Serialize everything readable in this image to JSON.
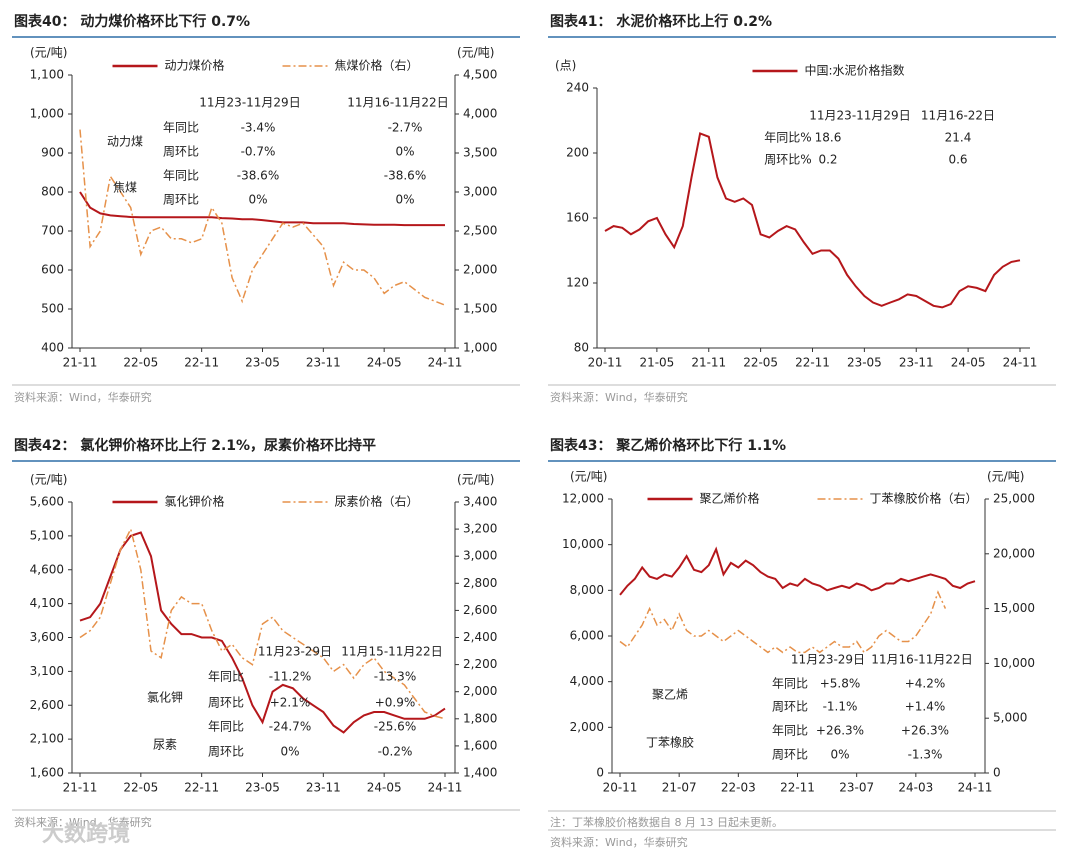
{
  "chart_data": [
    {
      "type": "line",
      "title": "图表40： 动力煤价格环比下行 0.7%",
      "y_unit": "(元/吨)",
      "y2_unit": "(元/吨)",
      "source": "资料来源：Wind，华泰研究",
      "x": [
        "21-11",
        null,
        null,
        null,
        null,
        null,
        "22-05",
        null,
        null,
        null,
        null,
        null,
        "22-11",
        null,
        null,
        null,
        null,
        null,
        "23-05",
        null,
        null,
        null,
        null,
        null,
        "23-11",
        null,
        null,
        null,
        null,
        null,
        "24-05",
        null,
        null,
        null,
        null,
        null,
        "24-11"
      ],
      "series": [
        {
          "name": "动力煤价格",
          "color": "#b5171b",
          "values": [
            800,
            760,
            745,
            740,
            738,
            736,
            735,
            735,
            735,
            735,
            735,
            735,
            735,
            735,
            733,
            732,
            730,
            730,
            728,
            725,
            722,
            722,
            722,
            720,
            720,
            720,
            720,
            718,
            717,
            716,
            716,
            716,
            715,
            715,
            715,
            715,
            715
          ]
        },
        {
          "name": "焦煤价格（右）",
          "color": "#e6914a",
          "dash": "dashdot",
          "axis": "y2",
          "values": [
            3800,
            2300,
            2500,
            3200,
            3000,
            2800,
            2200,
            2500,
            2550,
            2400,
            2400,
            2350,
            2400,
            2800,
            2600,
            1900,
            1600,
            2000,
            2200,
            2400,
            2600,
            2550,
            2600,
            2450,
            2300,
            1800,
            2100,
            2000,
            2000,
            1900,
            1700,
            1800,
            1850,
            1750,
            1650,
            1600,
            1550
          ]
        }
      ],
      "ylim": [
        400,
        1100
      ],
      "yticks": [
        400,
        500,
        600,
        700,
        800,
        900,
        {
          "value": 1000,
          "label": "1,000"
        },
        {
          "value": 1100,
          "label": "1,100"
        }
      ],
      "y2lim": [
        1000,
        4500
      ],
      "y2ticks": [
        {
          "value": 1000,
          "label": "1,000"
        },
        {
          "value": 1500,
          "label": "1,500"
        },
        {
          "value": 2000,
          "label": "2,000"
        },
        {
          "value": 2500,
          "label": "2,500"
        },
        {
          "value": 3000,
          "label": "3,000"
        },
        {
          "value": 3500,
          "label": "3,500"
        },
        {
          "value": 4000,
          "label": "4,000"
        },
        {
          "value": 4500,
          "label": "4,500"
        }
      ],
      "table": {
        "header": [
          "11月23-11月29日",
          "11月16-11月22日"
        ],
        "groups": [
          {
            "name": "动力煤",
            "rows": [
              {
                "label": "年同比",
                "values": [
                  "-3.4%",
                  "-2.7%"
                ]
              },
              {
                "label": "周环比",
                "values": [
                  "-0.7%",
                  "0%"
                ]
              }
            ]
          },
          {
            "name": "焦煤",
            "rows": [
              {
                "label": "年同比",
                "values": [
                  "-38.6%",
                  "-38.6%"
                ]
              },
              {
                "label": "周环比",
                "values": [
                  "0%",
                  "0%"
                ]
              }
            ]
          }
        ]
      }
    },
    {
      "type": "line",
      "title": "图表41： 水泥价格环比上行 0.2%",
      "y_unit": "(点)",
      "source": "资料来源：Wind，华泰研究",
      "x": [
        "20-11",
        null,
        null,
        null,
        null,
        null,
        "21-05",
        null,
        null,
        null,
        null,
        null,
        "21-11",
        null,
        null,
        null,
        null,
        null,
        "22-05",
        null,
        null,
        null,
        null,
        null,
        "22-11",
        null,
        null,
        null,
        null,
        null,
        "23-05",
        null,
        null,
        null,
        null,
        null,
        "23-11",
        null,
        null,
        null,
        null,
        null,
        "24-05",
        null,
        null,
        null,
        null,
        null,
        "24-11"
      ],
      "series": [
        {
          "name": "中国:水泥价格指数",
          "color": "#b5171b",
          "values": [
            152,
            155,
            154,
            150,
            153,
            158,
            160,
            150,
            142,
            155,
            185,
            212,
            210,
            185,
            172,
            170,
            172,
            168,
            150,
            148,
            152,
            155,
            153,
            145,
            138,
            140,
            140,
            135,
            125,
            118,
            112,
            108,
            106,
            108,
            110,
            113,
            112,
            109,
            106,
            105,
            107,
            115,
            118,
            117,
            115,
            125,
            130,
            133,
            134
          ]
        }
      ],
      "ylim": [
        80,
        240
      ],
      "yticks": [
        80,
        120,
        160,
        200,
        240
      ],
      "table": {
        "header": [
          "11月23-11月29日",
          "11月16-22日"
        ],
        "groups": [
          {
            "rows": [
              {
                "label": "年同比%",
                "values": [
                  "18.6",
                  "21.4"
                ]
              },
              {
                "label": "周环比%",
                "values": [
                  "0.2",
                  "0.6"
                ]
              }
            ]
          }
        ]
      }
    },
    {
      "type": "line",
      "title": "图表42： 氯化钾价格环比上行 2.1%，尿素价格环比持平",
      "y_unit": "(元/吨)",
      "y2_unit": "(元/吨)",
      "source": "资料来源：Wind，华泰研究",
      "x": [
        "21-11",
        null,
        null,
        null,
        null,
        null,
        "22-05",
        null,
        null,
        null,
        null,
        null,
        "22-11",
        null,
        null,
        null,
        null,
        null,
        "23-05",
        null,
        null,
        null,
        null,
        null,
        "23-11",
        null,
        null,
        null,
        null,
        null,
        "24-05",
        null,
        null,
        null,
        null,
        null,
        "24-11"
      ],
      "series": [
        {
          "name": "氯化钾价格",
          "color": "#b5171b",
          "values": [
            3850,
            3900,
            4100,
            4500,
            4900,
            5100,
            5150,
            4800,
            4000,
            3800,
            3650,
            3650,
            3600,
            3600,
            3550,
            3300,
            3000,
            2600,
            2350,
            2800,
            2900,
            2850,
            2700,
            2600,
            2500,
            2300,
            2200,
            2350,
            2450,
            2500,
            2500,
            2450,
            2400,
            2400,
            2400,
            2450,
            2550
          ]
        },
        {
          "name": "尿素价格（右）",
          "color": "#e6914a",
          "dash": "dashdot",
          "axis": "y2",
          "values": [
            2400,
            2450,
            2550,
            2800,
            3050,
            3200,
            2900,
            2300,
            2250,
            2600,
            2700,
            2650,
            2650,
            2450,
            2300,
            2350,
            2250,
            2200,
            2500,
            2550,
            2450,
            2400,
            2350,
            2300,
            2250,
            2150,
            2200,
            2100,
            2200,
            2250,
            2150,
            2100,
            2050,
            1950,
            1850,
            1820,
            1800
          ]
        }
      ],
      "ylim": [
        1600,
        5600
      ],
      "yticks": [
        {
          "value": 1600,
          "label": "1,600"
        },
        {
          "value": 2100,
          "label": "2,100"
        },
        {
          "value": 2600,
          "label": "2,600"
        },
        {
          "value": 3100,
          "label": "3,100"
        },
        {
          "value": 3600,
          "label": "3,600"
        },
        {
          "value": 4100,
          "label": "4,100"
        },
        {
          "value": 4600,
          "label": "4,600"
        },
        {
          "value": 5100,
          "label": "5,100"
        },
        {
          "value": 5600,
          "label": "5,600"
        }
      ],
      "y2lim": [
        1400,
        3400
      ],
      "y2ticks": [
        {
          "value": 1400,
          "label": "1,400"
        },
        {
          "value": 1600,
          "label": "1,600"
        },
        {
          "value": 1800,
          "label": "1,800"
        },
        {
          "value": 2000,
          "label": "2,000"
        },
        {
          "value": 2200,
          "label": "2,200"
        },
        {
          "value": 2400,
          "label": "2,400"
        },
        {
          "value": 2600,
          "label": "2,600"
        },
        {
          "value": 2800,
          "label": "2,800"
        },
        {
          "value": 3000,
          "label": "3,000"
        },
        {
          "value": 3200,
          "label": "3,200"
        },
        {
          "value": 3400,
          "label": "3,400"
        }
      ],
      "table": {
        "header": [
          "11月23-29日",
          "11月15-11月22日"
        ],
        "groups": [
          {
            "name": "氯化钾",
            "rows": [
              {
                "label": "年同比",
                "values": [
                  "-11.2%",
                  "-13.3%"
                ]
              },
              {
                "label": "周环比",
                "values": [
                  "+2.1%",
                  "+0.9%"
                ]
              }
            ]
          },
          {
            "name": "尿素",
            "rows": [
              {
                "label": "年同比",
                "values": [
                  "-24.7%",
                  "-25.6%"
                ]
              },
              {
                "label": "周环比",
                "values": [
                  "0%",
                  "-0.2%"
                ]
              }
            ]
          }
        ]
      },
      "watermark": "大数跨境"
    },
    {
      "type": "line",
      "title": "图表43： 聚乙烯价格环比下行 1.1%",
      "y_unit": "(元/吨)",
      "y2_unit": "(元/吨)",
      "note": "注：丁苯橡胶价格数据自 8 月 13 日起未更新。",
      "source": "资料来源：Wind，华泰研究",
      "x": [
        "20-11",
        null,
        null,
        null,
        null,
        null,
        null,
        null,
        "21-07",
        null,
        null,
        null,
        null,
        null,
        null,
        null,
        "22-03",
        null,
        null,
        null,
        null,
        null,
        null,
        null,
        "22-11",
        null,
        null,
        null,
        null,
        null,
        null,
        null,
        "23-07",
        null,
        null,
        null,
        null,
        null,
        null,
        null,
        "24-03",
        null,
        null,
        null,
        null,
        null,
        null,
        null,
        "24-11"
      ],
      "series": [
        {
          "name": "聚乙烯价格",
          "color": "#b5171b",
          "values": [
            7800,
            8200,
            8500,
            9000,
            8600,
            8500,
            8700,
            8600,
            9000,
            9500,
            8900,
            8800,
            9100,
            9800,
            8700,
            9200,
            9000,
            9300,
            9100,
            8800,
            8600,
            8500,
            8100,
            8300,
            8200,
            8500,
            8300,
            8200,
            8000,
            8100,
            8200,
            8100,
            8300,
            8200,
            8000,
            8100,
            8300,
            8300,
            8500,
            8400,
            8500,
            8600,
            8700,
            8600,
            8500,
            8200,
            8100,
            8300,
            8400
          ]
        },
        {
          "name": "丁苯橡胶价格（右）",
          "color": "#e6914a",
          "dash": "dashdot",
          "axis": "y2",
          "values": [
            12000,
            11500,
            12500,
            13500,
            15000,
            13500,
            14000,
            13000,
            14500,
            13000,
            12500,
            12500,
            13000,
            12500,
            12000,
            12500,
            13000,
            12500,
            12000,
            11500,
            11000,
            11500,
            11000,
            11500,
            11000,
            11000,
            11500,
            11000,
            11500,
            12000,
            11500,
            11500,
            12000,
            11000,
            11500,
            12500,
            13000,
            12500,
            12000,
            12000,
            12500,
            13500,
            14500,
            16500,
            15000,
            null,
            null,
            null,
            null
          ]
        }
      ],
      "ylim": [
        0,
        12000
      ],
      "yticks": [
        0,
        {
          "value": 2000,
          "label": "2,000"
        },
        {
          "value": 4000,
          "label": "4,000"
        },
        {
          "value": 6000,
          "label": "6,000"
        },
        {
          "value": 8000,
          "label": "8,000"
        },
        {
          "value": 10000,
          "label": "10,000"
        },
        {
          "value": 12000,
          "label": "12,000"
        }
      ],
      "y2lim": [
        0,
        25000
      ],
      "y2ticks": [
        0,
        {
          "value": 5000,
          "label": "5,000"
        },
        {
          "value": 10000,
          "label": "10,000"
        },
        {
          "value": 15000,
          "label": "15,000"
        },
        {
          "value": 20000,
          "label": "20,000"
        },
        {
          "value": 25000,
          "label": "25,000"
        }
      ],
      "table": {
        "header": [
          "11月23-29日",
          "11月16-11月22日"
        ],
        "groups": [
          {
            "name": "聚乙烯",
            "rows": [
              {
                "label": "年同比",
                "values": [
                  "+5.8%",
                  "+4.2%"
                ]
              },
              {
                "label": "周环比",
                "values": [
                  "-1.1%",
                  "+1.4%"
                ]
              }
            ]
          },
          {
            "name": "丁苯橡胶",
            "rows": [
              {
                "label": "年同比",
                "values": [
                  "+26.3%",
                  "+26.3%"
                ]
              },
              {
                "label": "周环比",
                "values": [
                  "0%",
                  "-1.3%"
                ]
              }
            ]
          }
        ]
      }
    }
  ]
}
